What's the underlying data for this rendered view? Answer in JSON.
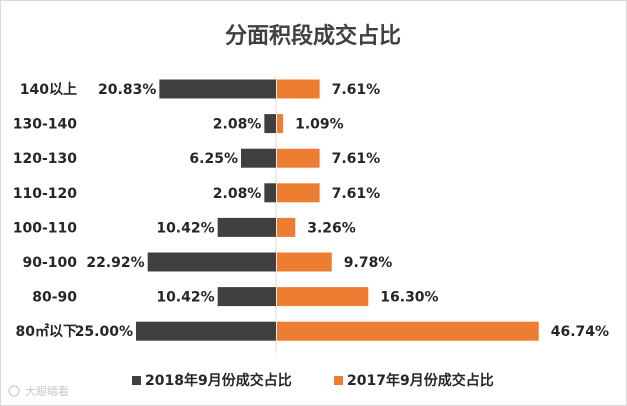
{
  "chart_data": {
    "type": "bar",
    "orientation": "horizontal-diverging",
    "title": "分面积段成交占比",
    "categories": [
      "140以上",
      "130-140",
      "120-130",
      "110-120",
      "100-110",
      "90-100",
      "80-90",
      "80㎡以下"
    ],
    "series": [
      {
        "name": "2018年9月份成交占比",
        "values": [
          20.83,
          2.08,
          6.25,
          2.08,
          10.42,
          22.92,
          10.42,
          25.0
        ],
        "labels": [
          "20.83%",
          "2.08%",
          "6.25%",
          "2.08%",
          "10.42%",
          "22.92%",
          "10.42%",
          "25.00%"
        ],
        "color": "#404040",
        "side": "left"
      },
      {
        "name": "2017年9月份成交占比",
        "values": [
          7.61,
          1.09,
          7.61,
          7.61,
          3.26,
          9.78,
          16.3,
          46.74
        ],
        "labels": [
          "7.61%",
          "1.09%",
          "7.61%",
          "7.61%",
          "3.26%",
          "9.78%",
          "16.30%",
          "46.74%"
        ],
        "color": "#ED7D31",
        "side": "right"
      }
    ],
    "legend": "bottom",
    "grid": false
  },
  "watermark": "大眼睛看"
}
